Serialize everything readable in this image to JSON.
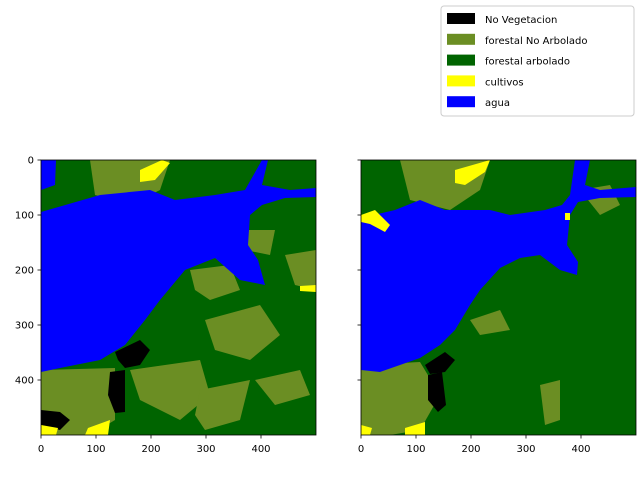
{
  "chart_data": [
    {
      "type": "heatmap",
      "title": "",
      "xlabel": "",
      "ylabel": "",
      "xlim": [
        0,
        500
      ],
      "ylim": [
        500,
        0
      ],
      "xticks": [
        0,
        100,
        200,
        300,
        400
      ],
      "yticks": [
        0,
        100,
        200,
        300,
        400
      ],
      "grid": false
    },
    {
      "type": "heatmap",
      "title": "",
      "xlabel": "",
      "ylabel": "",
      "xlim": [
        0,
        500
      ],
      "ylim": [
        500,
        0
      ],
      "xticks": [
        0,
        100,
        200,
        300,
        400
      ],
      "yticks": [],
      "grid": false
    }
  ],
  "legend": {
    "placement": "top-right",
    "entries": [
      {
        "label": "No Vegetacion",
        "color": "#000000"
      },
      {
        "label": "forestal No Arbolado",
        "color": "#6b8e23"
      },
      {
        "label": "forestal arbolado",
        "color": "#006400"
      },
      {
        "label": "cultivos",
        "color": "#ffff00"
      },
      {
        "label": "agua",
        "color": "#0000ff"
      }
    ]
  },
  "ticks": {
    "x": [
      "0",
      "100",
      "200",
      "300",
      "400"
    ],
    "y": [
      "0",
      "100",
      "200",
      "300",
      "400"
    ]
  }
}
